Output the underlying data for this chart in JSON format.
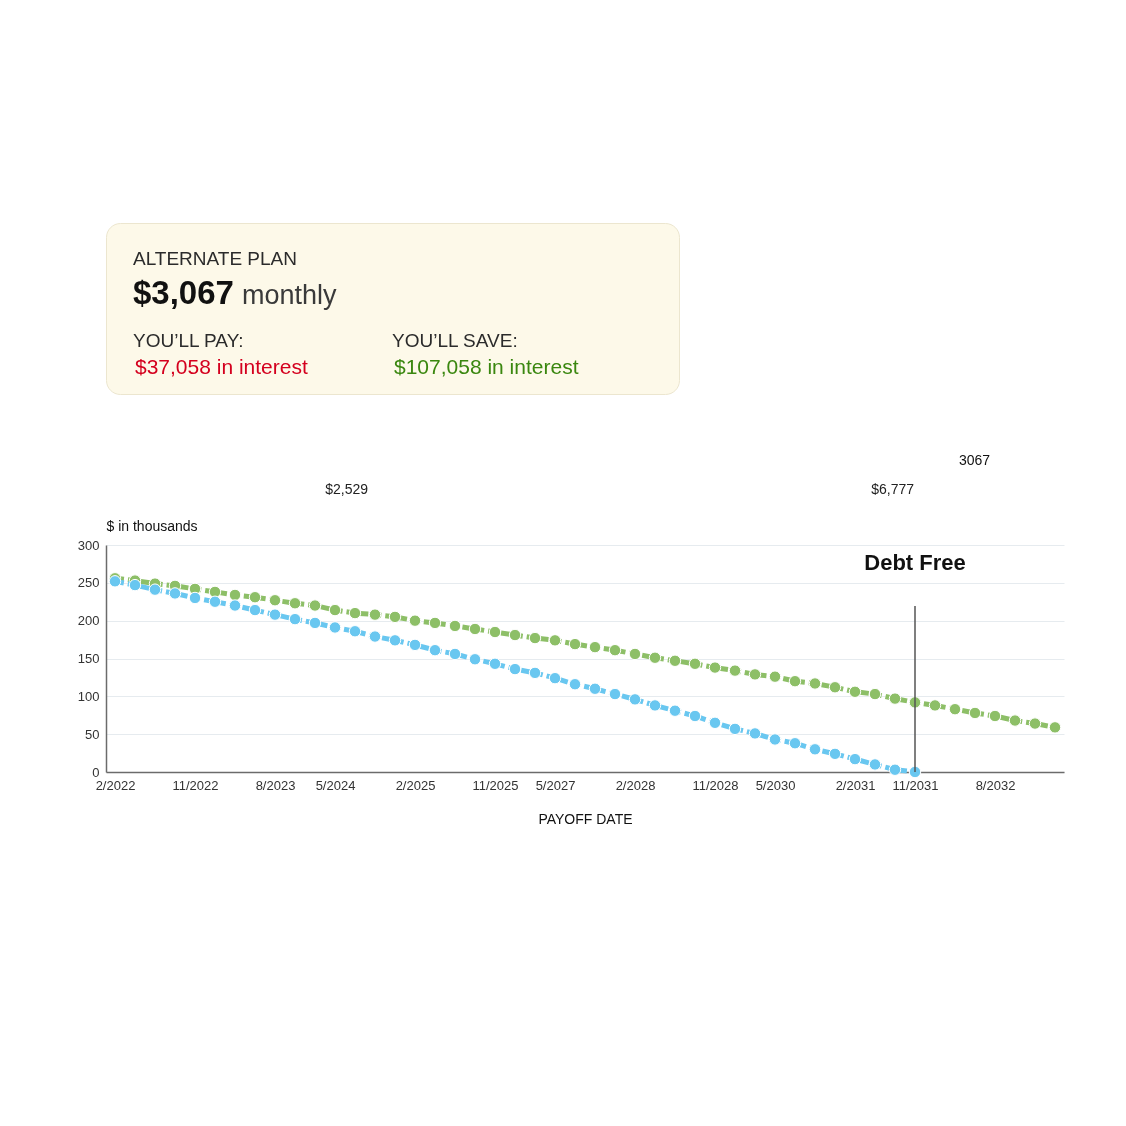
{
  "chart_data": [
    {
      "type": "other",
      "title": "ALTERNATE PLAN",
      "annotations": [
        "$3,067",
        "monthly",
        "YOU’LL PAY:",
        "$37,058 in interest",
        "YOU’LL SAVE:",
        "$107,058 in interest"
      ]
    },
    {
      "type": "line",
      "xlabel": "PAYOFF DATE",
      "ylabel": "$ in thousands",
      "categories": [
        "2/2022",
        null,
        null,
        null,
        "11/2022",
        null,
        null,
        null,
        "8/2023",
        null,
        null,
        "5/2024",
        null,
        null,
        null,
        "2/2025",
        null,
        null,
        null,
        "11/2025",
        null,
        null,
        "5/2027",
        null,
        null,
        null,
        "2/2028",
        null,
        null,
        null,
        "11/2028",
        null,
        null,
        "5/2030",
        null,
        null,
        null,
        "2/2031",
        null,
        null,
        "11/2031",
        null,
        null,
        null,
        "8/2032",
        null,
        null,
        null
      ],
      "series": [
        {
          "color": "#8dbf67",
          "values": [
            256,
            253,
            249,
            246,
            242,
            238,
            234,
            231,
            227,
            223,
            220,
            214,
            210,
            208,
            205,
            200,
            197,
            193,
            189,
            185,
            181,
            177,
            174,
            169,
            165,
            161,
            156,
            151,
            147,
            143,
            138,
            134,
            129,
            126,
            120,
            117,
            112,
            106,
            103,
            97,
            92,
            88,
            83,
            78,
            74,
            68,
            64,
            59
          ]
        },
        {
          "color": "#69c7f0",
          "values": [
            252,
            247,
            241,
            236,
            230,
            225,
            220,
            214,
            208,
            202,
            197,
            191,
            186,
            179,
            174,
            168,
            161,
            156,
            149,
            143,
            136,
            131,
            124,
            116,
            110,
            103,
            96,
            88,
            81,
            74,
            65,
            57,
            51,
            43,
            38,
            30,
            24,
            17,
            10,
            3,
            0,
            null,
            null,
            null,
            null,
            null,
            null,
            null
          ]
        }
      ],
      "ylim": [
        0,
        300
      ],
      "yticks": [
        0,
        50,
        100,
        150,
        200,
        250,
        300
      ],
      "grid": "y",
      "marker": "circle",
      "line_style": "dashed",
      "ref_lines": [
        {
          "axis": "x",
          "value": "11/2031",
          "label": "Debt Free"
        }
      ],
      "annotations": [
        "$2,529",
        "$6,777",
        "3067"
      ]
    }
  ]
}
